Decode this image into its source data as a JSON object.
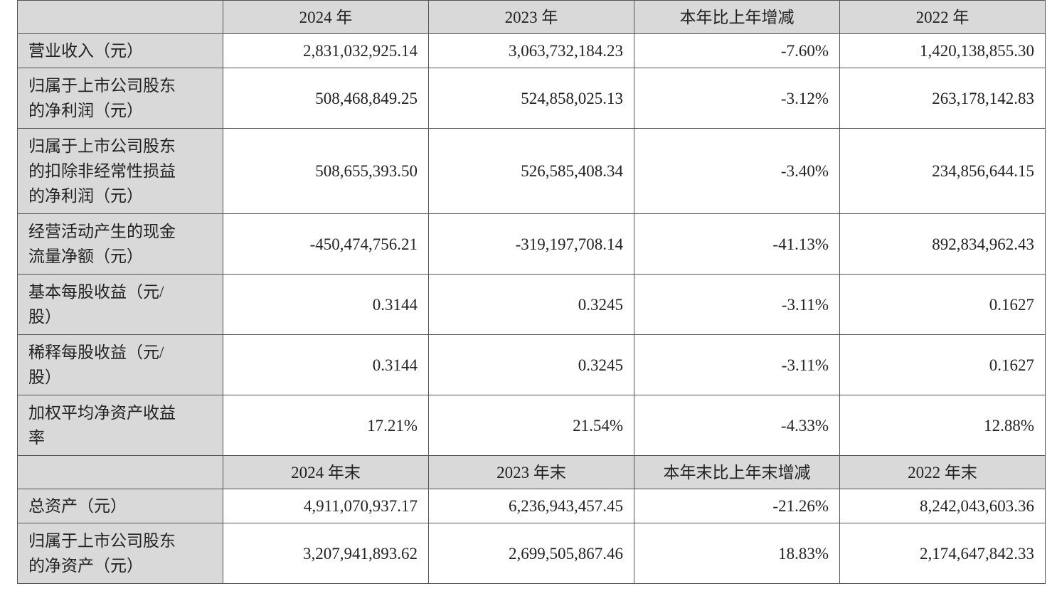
{
  "table": {
    "header": [
      "2024 年",
      "2023 年",
      "本年比上年增减",
      "2022 年"
    ],
    "rows": [
      {
        "label": [
          "营业收入（元）"
        ],
        "cells": [
          "2,831,032,925.14",
          "3,063,732,184.23",
          "-7.60%",
          "1,420,138,855.30"
        ]
      },
      {
        "label": [
          "归属于上市公司股东",
          "的净利润（元）"
        ],
        "cells": [
          "508,468,849.25",
          "524,858,025.13",
          "-3.12%",
          "263,178,142.83"
        ]
      },
      {
        "label": [
          "归属于上市公司股东",
          "的扣除非经常性损益",
          "的净利润（元）"
        ],
        "cells": [
          "508,655,393.50",
          "526,585,408.34",
          "-3.40%",
          "234,856,644.15"
        ]
      },
      {
        "label": [
          "经营活动产生的现金",
          "流量净额（元）"
        ],
        "cells": [
          "-450,474,756.21",
          "-319,197,708.14",
          "-41.13%",
          "892,834,962.43"
        ]
      },
      {
        "label": [
          "基本每股收益（元/",
          "股）"
        ],
        "cells": [
          "0.3144",
          "0.3245",
          "-3.11%",
          "0.1627"
        ]
      },
      {
        "label": [
          "稀释每股收益（元/",
          "股）"
        ],
        "cells": [
          "0.3144",
          "0.3245",
          "-3.11%",
          "0.1627"
        ]
      },
      {
        "label": [
          "加权平均净资产收益",
          "率"
        ],
        "cells": [
          "17.21%",
          "21.54%",
          "-4.33%",
          "12.88%"
        ]
      }
    ],
    "subheader": [
      "2024 年末",
      "2023 年末",
      "本年末比上年末增减",
      "2022 年末"
    ],
    "rows2": [
      {
        "label": [
          "总资产（元）"
        ],
        "cells": [
          "4,911,070,937.17",
          "6,236,943,457.45",
          "-21.26%",
          "8,242,043,603.36"
        ]
      },
      {
        "label": [
          "归属于上市公司股东",
          "的净资产（元）"
        ],
        "cells": [
          "3,207,941,893.62",
          "2,699,505,867.46",
          "18.83%",
          "2,174,647,842.33"
        ]
      }
    ]
  }
}
